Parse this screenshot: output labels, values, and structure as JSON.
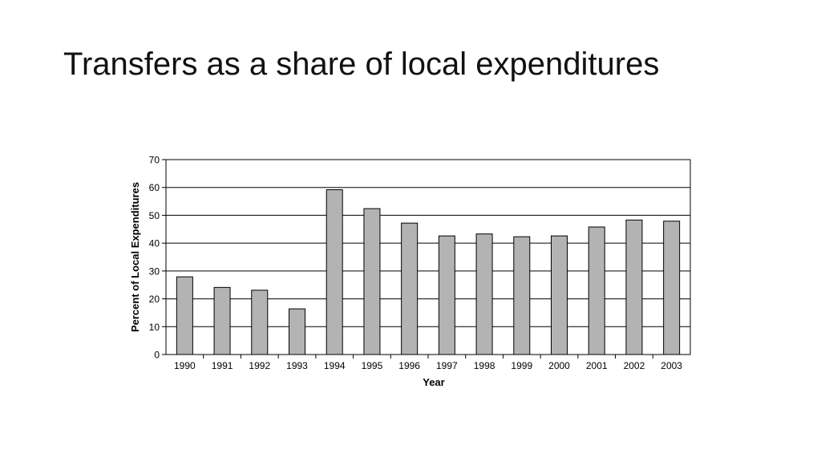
{
  "slide": {
    "title": "Transfers as a share of local expenditures"
  },
  "chart_data": {
    "type": "bar",
    "title": "",
    "xlabel": "Year",
    "ylabel": "Percent of Local Expenditures",
    "categories": [
      "1990",
      "1991",
      "1992",
      "1993",
      "1994",
      "1995",
      "1996",
      "1997",
      "1998",
      "1999",
      "2000",
      "2001",
      "2002",
      "2003"
    ],
    "values": [
      27.9,
      24.1,
      23.1,
      16.4,
      59.2,
      52.4,
      47.2,
      42.6,
      43.3,
      42.3,
      42.6,
      45.8,
      48.3,
      47.9
    ],
    "ylim": [
      0,
      70
    ],
    "yticks": [
      0,
      10,
      20,
      30,
      40,
      50,
      60,
      70
    ],
    "grid": "horizontal",
    "legend": "none",
    "colors": {
      "bar_fill": "#b3b3b3",
      "bar_stroke": "#000000",
      "grid": "#000000"
    }
  }
}
